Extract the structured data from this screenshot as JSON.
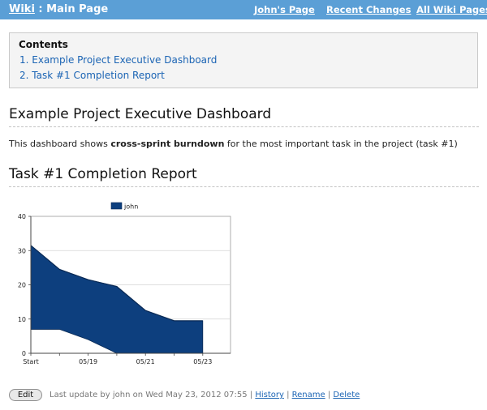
{
  "header": {
    "wiki_link": "Wiki",
    "separator": " : ",
    "page_name": "Main Page",
    "nav": [
      "John's Page",
      "Recent Changes",
      "All Wiki Pages"
    ]
  },
  "toc": {
    "title": "Contents",
    "items": [
      "1. Example Project Executive Dashboard",
      "2. Task #1 Completion Report"
    ]
  },
  "section1": {
    "heading": "Example Project Executive Dashboard",
    "text_before": "This dashboard shows ",
    "text_bold": "cross-sprint burndown",
    "text_after": " for the most important task in the project (task #1)"
  },
  "section2": {
    "heading": "Task #1 Completion Report"
  },
  "chart_data": {
    "type": "area",
    "categories": [
      "Start",
      "",
      "05/19",
      "",
      "05/21",
      "",
      "05/23"
    ],
    "series": [
      {
        "name": "john",
        "upper": [
          31.5,
          24.5,
          21.5,
          19.5,
          12.5,
          9.5,
          9.5
        ],
        "lower": [
          7,
          7,
          4,
          0,
          null,
          null,
          null
        ]
      }
    ],
    "ylim": [
      0,
      40
    ],
    "yticks": [
      0,
      10,
      20,
      30,
      40
    ],
    "grid": true,
    "legend": "top",
    "colors": {
      "fill": "#0d3f7e",
      "stroke": "#0a2a55"
    }
  },
  "footer": {
    "edit_label": "Edit",
    "meta_text": "Last update by john on Wed May 23, 2012 07:55 | ",
    "links": [
      "History",
      "Rename",
      "Delete"
    ],
    "sep": " | "
  }
}
